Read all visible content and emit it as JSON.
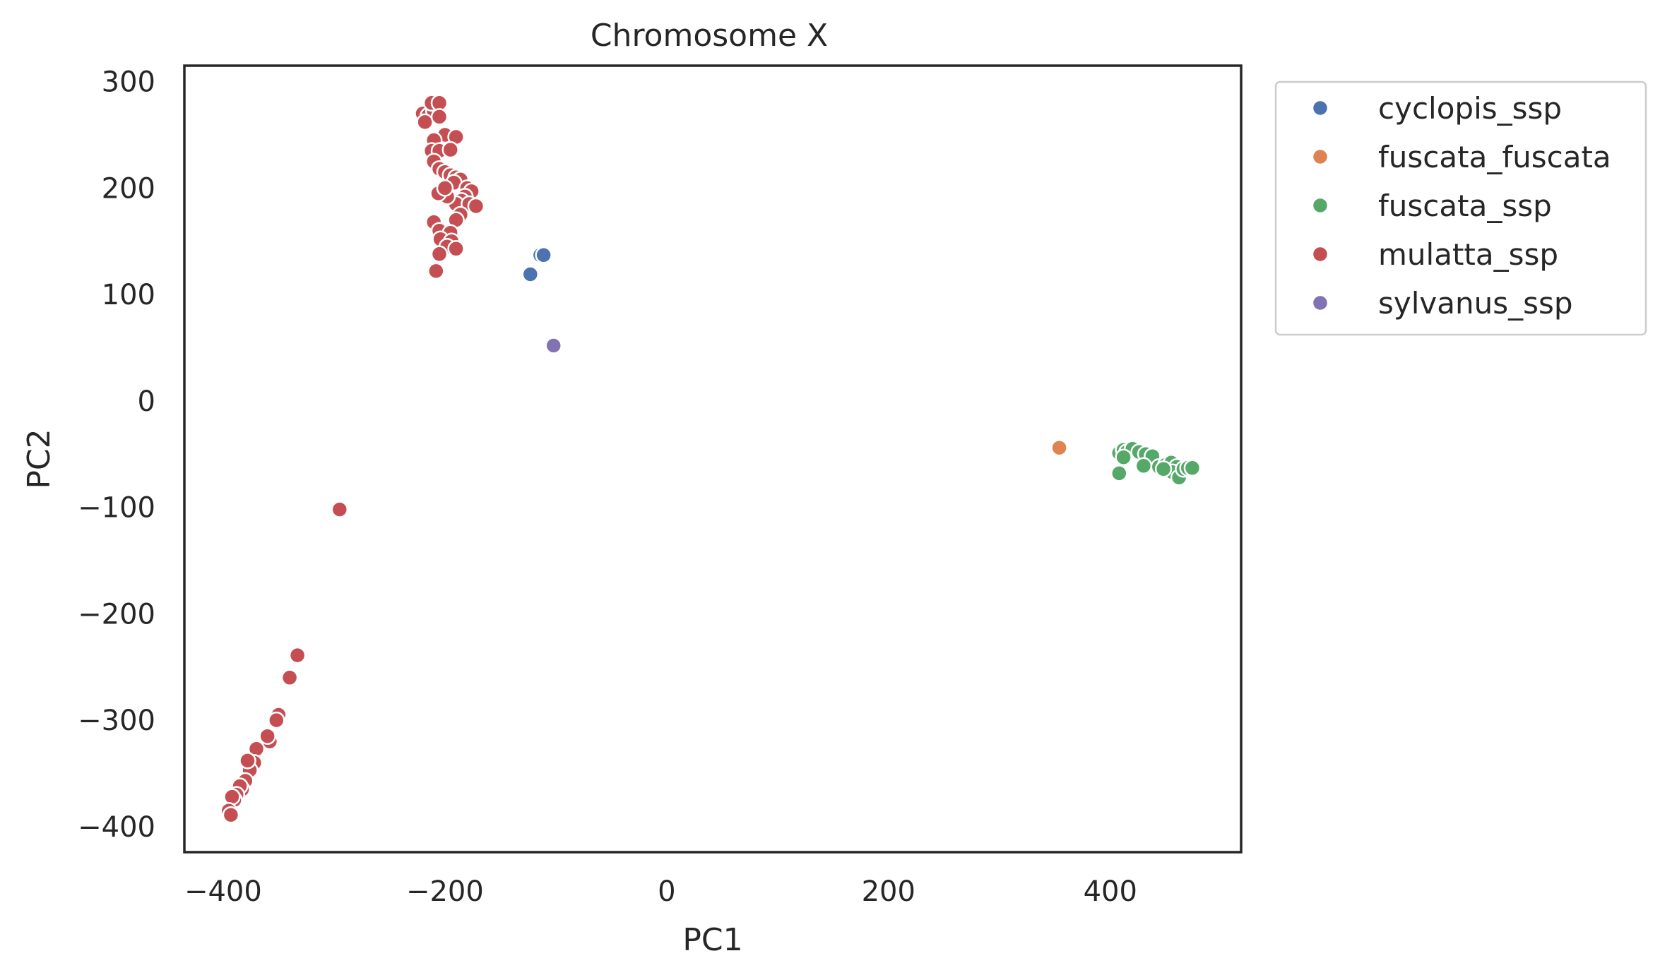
{
  "chart_data": {
    "type": "scatter",
    "title": "Chromosome X",
    "xlabel": "PC1",
    "ylabel": "PC2",
    "xlim": [
      -435,
      518
    ],
    "ylim": [
      -424,
      315
    ],
    "x_ticks": [
      -400,
      -200,
      0,
      200,
      400
    ],
    "y_ticks": [
      300,
      200,
      100,
      0,
      -100,
      -200,
      -300,
      -400
    ],
    "x_tick_labels": [
      "−400",
      "−200",
      "0",
      "200",
      "400"
    ],
    "y_tick_labels": [
      "300",
      "200",
      "100",
      "0",
      "−100",
      "−200",
      "−300",
      "−400"
    ],
    "grid": false,
    "legend_position": "outside-top-right",
    "series": [
      {
        "name": "cyclopis_ssp",
        "color": "#4c72b0",
        "points": [
          [
            -114,
            137
          ],
          [
            -111,
            137
          ],
          [
            -123,
            119
          ]
        ]
      },
      {
        "name": "fuscata_fuscata",
        "color": "#dd8452",
        "points": [
          [
            354,
            -44
          ]
        ]
      },
      {
        "name": "fuscata_ssp",
        "color": "#55a868",
        "points": [
          [
            408,
            -49
          ],
          [
            412,
            -46
          ],
          [
            415,
            -48
          ],
          [
            420,
            -45
          ],
          [
            426,
            -48
          ],
          [
            432,
            -50
          ],
          [
            438,
            -52
          ],
          [
            430,
            -61
          ],
          [
            444,
            -62
          ],
          [
            450,
            -60
          ],
          [
            455,
            -58
          ],
          [
            460,
            -62
          ],
          [
            456,
            -67
          ],
          [
            462,
            -72
          ],
          [
            466,
            -64
          ],
          [
            470,
            -63
          ],
          [
            474,
            -63
          ],
          [
            408,
            -68
          ],
          [
            412,
            -53
          ],
          [
            448,
            -64
          ]
        ]
      },
      {
        "name": "mulatta_ssp",
        "color": "#c44e52",
        "points": [
          [
            -220,
            270
          ],
          [
            -215,
            268
          ],
          [
            -210,
            272
          ],
          [
            -212,
            280
          ],
          [
            -205,
            280
          ],
          [
            -218,
            262
          ],
          [
            -205,
            267
          ],
          [
            -200,
            250
          ],
          [
            -190,
            248
          ],
          [
            -210,
            245
          ],
          [
            -212,
            235
          ],
          [
            -205,
            235
          ],
          [
            -195,
            236
          ],
          [
            -210,
            225
          ],
          [
            -205,
            218
          ],
          [
            -200,
            215
          ],
          [
            -195,
            212
          ],
          [
            -190,
            210
          ],
          [
            -186,
            208
          ],
          [
            -192,
            205
          ],
          [
            -180,
            200
          ],
          [
            -176,
            197
          ],
          [
            -182,
            192
          ],
          [
            -185,
            188
          ],
          [
            -190,
            185
          ],
          [
            -198,
            192
          ],
          [
            -206,
            195
          ],
          [
            -200,
            200
          ],
          [
            -178,
            185
          ],
          [
            -172,
            183
          ],
          [
            -186,
            175
          ],
          [
            -190,
            170
          ],
          [
            -210,
            168
          ],
          [
            -205,
            160
          ],
          [
            -195,
            158
          ],
          [
            -204,
            152
          ],
          [
            -194,
            150
          ],
          [
            -198,
            145
          ],
          [
            -190,
            143
          ],
          [
            -205,
            138
          ],
          [
            -208,
            122
          ],
          [
            -295,
            -102
          ],
          [
            -333,
            -239
          ],
          [
            -340,
            -260
          ],
          [
            -350,
            -295
          ],
          [
            -352,
            -300
          ],
          [
            -358,
            -320
          ],
          [
            -360,
            -315
          ],
          [
            -370,
            -327
          ],
          [
            -372,
            -340
          ],
          [
            -376,
            -347
          ],
          [
            -378,
            -338
          ],
          [
            -380,
            -357
          ],
          [
            -383,
            -365
          ],
          [
            -385,
            -362
          ],
          [
            -388,
            -370
          ],
          [
            -390,
            -375
          ],
          [
            -392,
            -372
          ],
          [
            -395,
            -385
          ],
          [
            -393,
            -389
          ]
        ]
      },
      {
        "name": "sylvanus_ssp",
        "color": "#8172b3",
        "points": [
          [
            -102,
            52
          ]
        ]
      }
    ]
  }
}
